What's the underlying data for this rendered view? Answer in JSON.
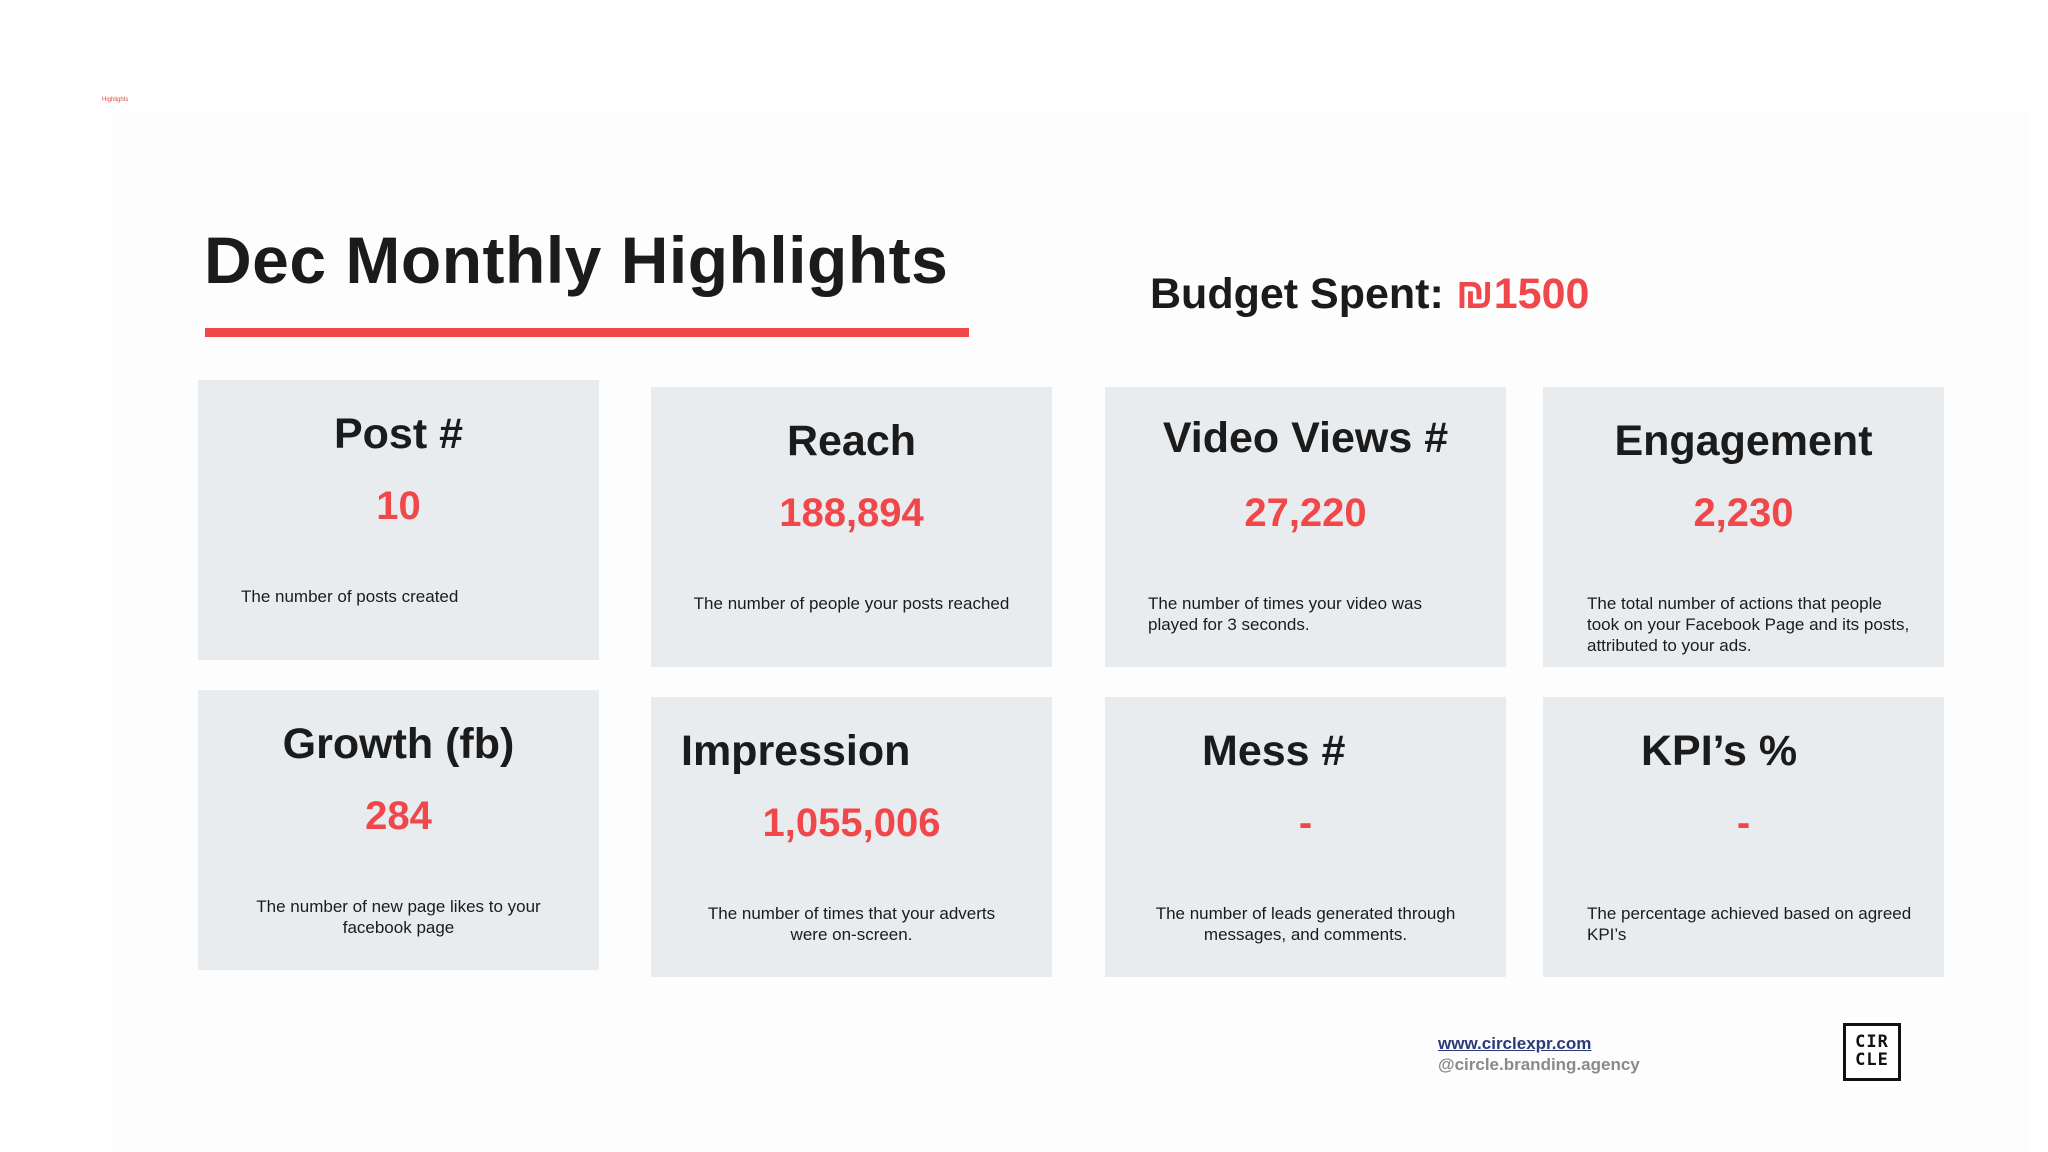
{
  "top_label": "Highlights",
  "title": "Dec Monthly Highlights",
  "budget": {
    "label": "Budget Spent:",
    "value": "₪1500"
  },
  "cards": [
    {
      "title": "Post #",
      "value": "10",
      "desc": "The number of posts created"
    },
    {
      "title": "Reach",
      "value": "188,894",
      "desc": "The number of people your posts reached"
    },
    {
      "title": "Video Views #",
      "value": "27,220",
      "desc": "The number of times your video was played for 3 seconds."
    },
    {
      "title": "Engagement",
      "value": "2,230",
      "desc": "The total number of actions that people took on your Facebook Page and its posts, attributed to your ads."
    },
    {
      "title": "Growth (fb)",
      "value": "284",
      "desc": "The number of new page likes to your facebook page"
    },
    {
      "title": "Impression",
      "value": "1,055,006",
      "desc": "The number of times that your adverts were on-screen."
    },
    {
      "title": "Mess #",
      "value": "-",
      "desc": "The number of leads generated through messages, and comments."
    },
    {
      "title": "KPI’s %",
      "value": "-",
      "desc": "The percentage achieved based on agreed KPI’s"
    }
  ],
  "footer": {
    "website": "www.circlexpr.com",
    "handle": "@circle.branding.agency",
    "logo_line1": "CIR",
    "logo_line2": "CLE"
  },
  "colors": {
    "accent": "#f0474a",
    "card_bg": "#e9ecef",
    "text": "#1b1b1b",
    "link": "#2b3a7a",
    "handle": "#8a8a8a"
  }
}
